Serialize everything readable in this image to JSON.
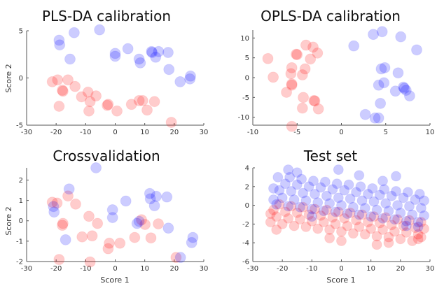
{
  "chart_data": [
    {
      "type": "scatter",
      "title": "PLS-DA calibration",
      "xlabel": "",
      "ylabel": "Score 2",
      "xlim": [
        -30,
        30
      ],
      "ylim": [
        -5,
        5
      ],
      "xticks": [
        "-30",
        "-20",
        "-10",
        "0",
        "10",
        "20",
        "30"
      ],
      "yticks": [
        "-5",
        "0",
        "5"
      ],
      "series": [
        {
          "color": "#ff0000",
          "points": [
            [
              -21.3,
              -0.4
            ],
            [
              -19.5,
              -0.2
            ],
            [
              -16,
              -0.2
            ],
            [
              -13.6,
              -0.9
            ],
            [
              -17.9,
              -1.3
            ],
            [
              -17.7,
              -1.4
            ],
            [
              -19,
              -3
            ],
            [
              -11.4,
              -2
            ],
            [
              -9.2,
              -1.5
            ],
            [
              -8.5,
              -2.5
            ],
            [
              -6.5,
              -1.9
            ],
            [
              -8.9,
              -3.5
            ],
            [
              -2.7,
              -2.9
            ],
            [
              -2.4,
              -2.8
            ],
            [
              0.6,
              -3.5
            ],
            [
              5.5,
              -2.8
            ],
            [
              8.1,
              -2.4
            ],
            [
              9.3,
              -2.4
            ],
            [
              10.8,
              -3.4
            ],
            [
              13.3,
              -2.5
            ],
            [
              19,
              -4.7
            ]
          ]
        },
        {
          "color": "#0000ff",
          "points": [
            [
              -19,
              4
            ],
            [
              -18.8,
              3.5
            ],
            [
              -13.9,
              4.8
            ],
            [
              -5.3,
              5.1
            ],
            [
              -15.3,
              2
            ],
            [
              0,
              2.6
            ],
            [
              0,
              2.3
            ],
            [
              4.3,
              3.1
            ],
            [
              8.1,
              2
            ],
            [
              8.5,
              1.6
            ],
            [
              12.3,
              2.8
            ],
            [
              12.5,
              2.7
            ],
            [
              13.7,
              2.2
            ],
            [
              14.7,
              2.8
            ],
            [
              17.9,
              2.7
            ],
            [
              18.2,
              0.9
            ],
            [
              22,
              -0.4
            ],
            [
              25.5,
              0.2
            ],
            [
              25.3,
              -0.1
            ]
          ]
        }
      ]
    },
    {
      "type": "scatter",
      "title": "OPLS-DA calibration",
      "xlabel": "",
      "ylabel": "",
      "xlim": [
        -10,
        10
      ],
      "ylim": [
        -12,
        12
      ],
      "xticks": [
        "-10",
        "-5",
        "0",
        "5",
        "10"
      ],
      "yticks": [
        "-10",
        "-5",
        "0",
        "5",
        "10"
      ],
      "series": [
        {
          "color": "#ff0000",
          "points": [
            [
              -8.3,
              4.8
            ],
            [
              -7.7,
              0.1
            ],
            [
              -5.1,
              5.9
            ],
            [
              -5,
              5.8
            ],
            [
              -4,
              8.2
            ],
            [
              -3.2,
              7.7
            ],
            [
              -2.7,
              6.2
            ],
            [
              -3.5,
              4.7
            ],
            [
              -5.6,
              2.5
            ],
            [
              -5.7,
              1
            ],
            [
              -5.6,
              -1.6
            ],
            [
              -5.6,
              -1.9
            ],
            [
              -4.1,
              2.2
            ],
            [
              -4.4,
              0.7
            ],
            [
              -6.2,
              -3.7
            ],
            [
              -4.3,
              -5
            ],
            [
              -3.1,
              -5.8
            ],
            [
              -3,
              -5.9
            ],
            [
              -4.4,
              -7.7
            ],
            [
              -2.6,
              -7.9
            ],
            [
              -5.6,
              -12.3
            ]
          ]
        },
        {
          "color": "#0000ff",
          "points": [
            [
              1.4,
              8
            ],
            [
              3.6,
              10.9
            ],
            [
              4.6,
              11.6
            ],
            [
              6.7,
              10.3
            ],
            [
              8.5,
              7
            ],
            [
              4.5,
              2.2
            ],
            [
              4.9,
              2.5
            ],
            [
              6.4,
              1.2
            ],
            [
              4.2,
              -1.9
            ],
            [
              4.8,
              -1.3
            ],
            [
              6.1,
              -3.4
            ],
            [
              7,
              -2.4
            ],
            [
              7.1,
              -2.7
            ],
            [
              7.3,
              -3.2
            ],
            [
              7.7,
              -4.6
            ],
            [
              4.4,
              -6.5
            ],
            [
              2.7,
              -9.3
            ],
            [
              3.8,
              -10.2
            ],
            [
              4.2,
              -10.2
            ]
          ]
        }
      ]
    },
    {
      "type": "scatter",
      "title": "Crossvalidation",
      "xlabel": "Score 1",
      "ylabel": "Score 2",
      "xlim": [
        -30,
        30
      ],
      "ylim": [
        -2,
        2.6
      ],
      "xticks": [
        "-30",
        "-20",
        "-10",
        "0",
        "10",
        "20",
        "30"
      ],
      "yticks": [
        "-2",
        "-1",
        "0",
        "1",
        "2"
      ],
      "series": [
        {
          "color": "#ff0000",
          "points": [
            [
              -21.3,
              0.91
            ],
            [
              -19.7,
              0.87
            ],
            [
              -16,
              1.22
            ],
            [
              -13.4,
              0.82
            ],
            [
              -17.7,
              -0.13
            ],
            [
              -17.9,
              -0.22
            ],
            [
              -11.2,
              -0.79
            ],
            [
              -8.9,
              0.22
            ],
            [
              -7.8,
              -0.74
            ],
            [
              -6,
              -0.13
            ],
            [
              -2,
              -1.1
            ],
            [
              -2.4,
              -1.37
            ],
            [
              1.6,
              -1.1
            ],
            [
              6.6,
              -0.82
            ],
            [
              8.9,
              0.05
            ],
            [
              10.1,
              -0.18
            ],
            [
              12.1,
              -0.84
            ],
            [
              14.6,
              -0.15
            ],
            [
              -19,
              -1.9
            ],
            [
              -8.5,
              -2.02
            ],
            [
              20.6,
              -1.8
            ]
          ]
        },
        {
          "color": "#0000ff",
          "points": [
            [
              -6.5,
              2.6
            ],
            [
              -15.6,
              1.56
            ],
            [
              -20.9,
              0.7
            ],
            [
              -20.7,
              0.43
            ],
            [
              -16.8,
              -0.93
            ],
            [
              -0.9,
              0.54
            ],
            [
              -0.9,
              0.16
            ],
            [
              3.6,
              0.97
            ],
            [
              11.7,
              1.34
            ],
            [
              11.9,
              1.08
            ],
            [
              13.9,
              1.2
            ],
            [
              13.3,
              0.74
            ],
            [
              17.5,
              1.17
            ],
            [
              7.4,
              -0.13
            ],
            [
              8.1,
              -0.03
            ],
            [
              18,
              -0.36
            ],
            [
              26.3,
              -0.82
            ],
            [
              25.9,
              -1.07
            ],
            [
              22.1,
              -1.8
            ]
          ]
        }
      ]
    },
    {
      "type": "scatter",
      "title": "Test set",
      "xlabel": "Score 1",
      "ylabel": "",
      "xlim": [
        -30,
        30
      ],
      "ylim": [
        -6,
        4
      ],
      "xticks": [
        "-30",
        "-20",
        "-10",
        "0",
        "10",
        "20",
        "30"
      ],
      "yticks": [
        "-6",
        "-4",
        "-2",
        "0",
        "2",
        "4"
      ],
      "series": [
        {
          "color": "#ff0000",
          "points": [
            [
              -24,
              -1.8
            ],
            [
              -20,
              -2.0
            ],
            [
              -16,
              -2.2
            ],
            [
              -12,
              -2.3
            ],
            [
              -8,
              -2.5
            ],
            [
              -4,
              -2.6
            ],
            [
              0,
              -2.8
            ],
            [
              4,
              -3.0
            ],
            [
              8,
              -3.1
            ],
            [
              12,
              -3.3
            ],
            [
              16,
              -3.4
            ],
            [
              20,
              -3.6
            ],
            [
              24,
              -3.8
            ],
            [
              27,
              -3.4
            ],
            [
              -22,
              -1.2
            ],
            [
              -18,
              -1.4
            ],
            [
              -14,
              -1.5
            ],
            [
              -10,
              -1.7
            ],
            [
              -6,
              -1.8
            ],
            [
              -2,
              -2.0
            ],
            [
              2,
              -2.2
            ],
            [
              6,
              -2.3
            ],
            [
              10,
              -2.5
            ],
            [
              14,
              -2.6
            ],
            [
              18,
              -2.8
            ],
            [
              22,
              -2.9
            ],
            [
              26,
              -3.1
            ],
            [
              -23,
              -0.5
            ],
            [
              -19,
              -0.7
            ],
            [
              -15,
              -0.8
            ],
            [
              -11,
              -1.0
            ],
            [
              -7,
              -1.1
            ],
            [
              -3,
              -1.3
            ],
            [
              1,
              -1.4
            ],
            [
              5,
              -1.6
            ],
            [
              9,
              -1.8
            ],
            [
              13,
              -1.9
            ],
            [
              17,
              -2.1
            ],
            [
              21,
              -2.2
            ],
            [
              25,
              -2.4
            ],
            [
              28,
              -2.5
            ],
            [
              -21,
              0.1
            ],
            [
              -17,
              -0.1
            ],
            [
              -13,
              -0.2
            ],
            [
              -9,
              -0.4
            ],
            [
              -5,
              -0.5
            ],
            [
              -1,
              -0.7
            ],
            [
              3,
              -0.8
            ],
            [
              7,
              -1.0
            ],
            [
              11,
              -1.2
            ],
            [
              15,
              -1.3
            ],
            [
              19,
              -1.5
            ],
            [
              23,
              -1.6
            ],
            [
              27,
              -1.8
            ],
            [
              -22,
              -2.6
            ],
            [
              12,
              -4.2
            ],
            [
              16,
              -4.0
            ],
            [
              0,
              -3.8
            ],
            [
              -4,
              -3.5
            ],
            [
              -24,
              -0.9
            ],
            [
              26,
              -3.6
            ]
          ]
        },
        {
          "color": "#0000ff",
          "points": [
            [
              -22,
              0.1
            ],
            [
              -18,
              -0.1
            ],
            [
              -14,
              -0.2
            ],
            [
              -10,
              -0.4
            ],
            [
              -6,
              -0.6
            ],
            [
              -2,
              -0.7
            ],
            [
              2,
              -0.9
            ],
            [
              6,
              -1.0
            ],
            [
              10,
              -1.2
            ],
            [
              14,
              -1.4
            ],
            [
              18,
              -1.5
            ],
            [
              22,
              -1.7
            ],
            [
              26,
              -1.8
            ],
            [
              -20,
              0.8
            ],
            [
              -16,
              0.6
            ],
            [
              -12,
              0.5
            ],
            [
              -8,
              0.3
            ],
            [
              -4,
              0.2
            ],
            [
              0,
              0
            ],
            [
              4,
              -0.2
            ],
            [
              8,
              -0.3
            ],
            [
              12,
              -0.5
            ],
            [
              16,
              -0.6
            ],
            [
              20,
              -0.8
            ],
            [
              24,
              -1.0
            ],
            [
              28,
              -1.1
            ],
            [
              -21,
              1.6
            ],
            [
              -17,
              1.5
            ],
            [
              -13,
              1.3
            ],
            [
              -9,
              1.2
            ],
            [
              -5,
              1.0
            ],
            [
              -1,
              0.8
            ],
            [
              3,
              0.7
            ],
            [
              7,
              0.5
            ],
            [
              11,
              0.4
            ],
            [
              15,
              0.2
            ],
            [
              19,
              0
            ],
            [
              23,
              -0.1
            ],
            [
              27,
              -0.3
            ],
            [
              -19,
              2.3
            ],
            [
              -15,
              2.2
            ],
            [
              -11,
              2.0
            ],
            [
              -7,
              1.9
            ],
            [
              -3,
              1.7
            ],
            [
              1,
              1.6
            ],
            [
              5,
              1.4
            ],
            [
              9,
              1.2
            ],
            [
              13,
              1.1
            ],
            [
              17,
              1.0
            ],
            [
              21,
              0.8
            ],
            [
              25,
              0.6
            ],
            [
              28,
              0.5
            ],
            [
              -21.5,
              3.0
            ],
            [
              -17.5,
              3.0
            ],
            [
              -13.5,
              2.8
            ],
            [
              -9.5,
              2.6
            ],
            [
              -5.5,
              2.5
            ],
            [
              -1.5,
              2.3
            ],
            [
              2.5,
              2.2
            ],
            [
              6.5,
              2.0
            ],
            [
              10.5,
              1.8
            ],
            [
              14.5,
              1.7
            ],
            [
              18.5,
              1.5
            ],
            [
              22.5,
              1.4
            ],
            [
              26.5,
              1.2
            ],
            [
              -1,
              3.8
            ],
            [
              -18,
              3.8
            ],
            [
              -15,
              3.5
            ],
            [
              6,
              3.2
            ],
            [
              18.5,
              3.1
            ],
            [
              -23,
              1.8
            ],
            [
              -23,
              0.6
            ],
            [
              14,
              2.6
            ],
            [
              22,
              -2.2
            ],
            [
              -10,
              -1.2
            ],
            [
              26,
              -2.3
            ]
          ]
        }
      ]
    }
  ]
}
